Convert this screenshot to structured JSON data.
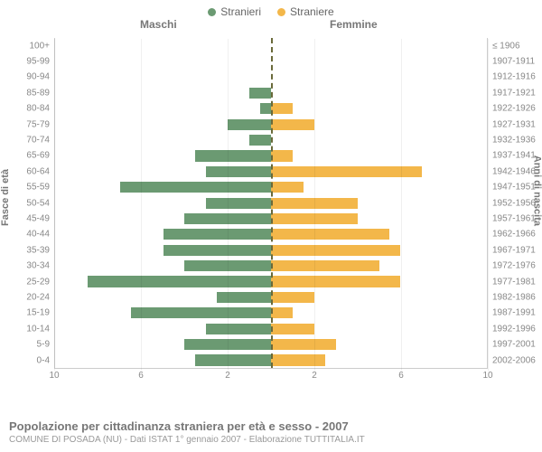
{
  "legend": {
    "male": {
      "label": "Stranieri",
      "color": "#6b9a72"
    },
    "female": {
      "label": "Straniere",
      "color": "#f3b74a"
    }
  },
  "headers": {
    "left": "Maschi",
    "right": "Femmine"
  },
  "axis_titles": {
    "left": "Fasce di età",
    "right": "Anni di nascita"
  },
  "chart": {
    "type": "population-pyramid",
    "xmax": 10,
    "xticks_left": [
      10,
      6,
      2
    ],
    "xticks_right": [
      2,
      6,
      10
    ],
    "background_color": "#ffffff",
    "grid_color": "#e8e8e8",
    "center_line_color": "#6a6a3a",
    "bar_height_ratio": 0.7,
    "rows": [
      {
        "age": "100+",
        "birth": "≤ 1906",
        "m": 0,
        "f": 0
      },
      {
        "age": "95-99",
        "birth": "1907-1911",
        "m": 0,
        "f": 0
      },
      {
        "age": "90-94",
        "birth": "1912-1916",
        "m": 0,
        "f": 0
      },
      {
        "age": "85-89",
        "birth": "1917-1921",
        "m": 1.0,
        "f": 0
      },
      {
        "age": "80-84",
        "birth": "1922-1926",
        "m": 0.5,
        "f": 1.0
      },
      {
        "age": "75-79",
        "birth": "1927-1931",
        "m": 2.0,
        "f": 2.0
      },
      {
        "age": "70-74",
        "birth": "1932-1936",
        "m": 1.0,
        "f": 0
      },
      {
        "age": "65-69",
        "birth": "1937-1941",
        "m": 3.5,
        "f": 1.0
      },
      {
        "age": "60-64",
        "birth": "1942-1946",
        "m": 3.0,
        "f": 7.0
      },
      {
        "age": "55-59",
        "birth": "1947-1951",
        "m": 7.0,
        "f": 1.5
      },
      {
        "age": "50-54",
        "birth": "1952-1956",
        "m": 3.0,
        "f": 4.0
      },
      {
        "age": "45-49",
        "birth": "1957-1961",
        "m": 4.0,
        "f": 4.0
      },
      {
        "age": "40-44",
        "birth": "1962-1966",
        "m": 5.0,
        "f": 5.5
      },
      {
        "age": "35-39",
        "birth": "1967-1971",
        "m": 5.0,
        "f": 6.0
      },
      {
        "age": "30-34",
        "birth": "1972-1976",
        "m": 4.0,
        "f": 5.0
      },
      {
        "age": "25-29",
        "birth": "1977-1981",
        "m": 8.5,
        "f": 6.0
      },
      {
        "age": "20-24",
        "birth": "1982-1986",
        "m": 2.5,
        "f": 2.0
      },
      {
        "age": "15-19",
        "birth": "1987-1991",
        "m": 6.5,
        "f": 1.0
      },
      {
        "age": "10-14",
        "birth": "1992-1996",
        "m": 3.0,
        "f": 2.0
      },
      {
        "age": "5-9",
        "birth": "1997-2001",
        "m": 4.0,
        "f": 3.0
      },
      {
        "age": "0-4",
        "birth": "2002-2006",
        "m": 3.5,
        "f": 2.5
      }
    ]
  },
  "footer": {
    "title": "Popolazione per cittadinanza straniera per età e sesso - 2007",
    "subtitle": "COMUNE DI POSADA (NU) - Dati ISTAT 1° gennaio 2007 - Elaborazione TUTTITALIA.IT"
  }
}
